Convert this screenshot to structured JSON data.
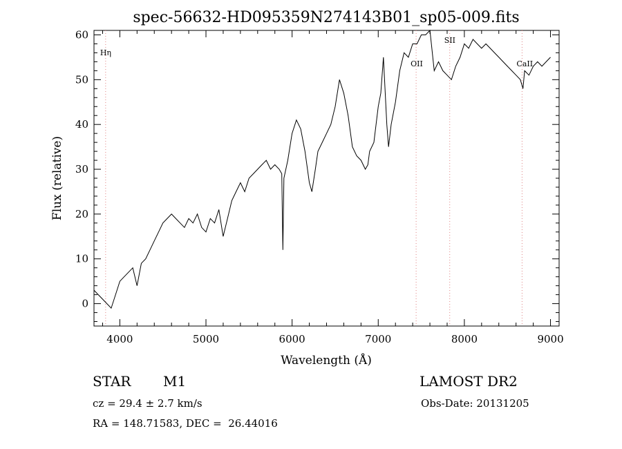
{
  "chart_data": {
    "type": "line",
    "title": "spec-56632-HD095359N274143B01_sp05-009.fits",
    "xlabel": "Wavelength (Å)",
    "ylabel": "Flux (relative)",
    "xlim": [
      3700,
      9100
    ],
    "ylim": [
      -5,
      61
    ],
    "xticks": [
      4000,
      5000,
      6000,
      7000,
      8000,
      9000
    ],
    "yticks": [
      0,
      10,
      20,
      30,
      40,
      50,
      60
    ],
    "grid": false,
    "line_color": "#000000",
    "marker_color": "#e08080",
    "series": [
      {
        "x": [
          3700,
          3750,
          3800,
          3850,
          3900,
          3950,
          4000,
          4050,
          4100,
          4150,
          4200,
          4250,
          4300,
          4350,
          4400,
          4450,
          4500,
          4550,
          4600,
          4650,
          4700,
          4750,
          4800,
          4850,
          4900,
          4950,
          5000,
          5050,
          5100,
          5150,
          5200,
          5250,
          5300,
          5350,
          5400,
          5450,
          5500,
          5550,
          5600,
          5650,
          5700,
          5750,
          5800,
          5850,
          5880,
          5893,
          5905,
          5950,
          6000,
          6050,
          6100,
          6150,
          6200,
          6230,
          6270,
          6300,
          6350,
          6400,
          6450,
          6500,
          6550,
          6600,
          6650,
          6700,
          6750,
          6800,
          6850,
          6880,
          6900,
          6950,
          7000,
          7030,
          7060,
          7100,
          7120,
          7150,
          7200,
          7250,
          7300,
          7350,
          7400,
          7450,
          7500,
          7550,
          7600,
          7650,
          7700,
          7750,
          7800,
          7850,
          7900,
          7950,
          8000,
          8050,
          8100,
          8150,
          8200,
          8250,
          8300,
          8350,
          8400,
          8450,
          8500,
          8550,
          8600,
          8650,
          8680,
          8700,
          8750,
          8800,
          8850,
          8900,
          8950,
          9000
        ],
        "y": [
          3,
          2,
          1,
          0,
          -1,
          2,
          5,
          6,
          7,
          8,
          4,
          9,
          10,
          12,
          14,
          16,
          18,
          19,
          20,
          19,
          18,
          17,
          19,
          18,
          20,
          17,
          16,
          19,
          18,
          21,
          15,
          19,
          23,
          25,
          27,
          25,
          28,
          29,
          30,
          31,
          32,
          30,
          31,
          30,
          29,
          12,
          28,
          32,
          38,
          41,
          39,
          34,
          27,
          25,
          30,
          34,
          36,
          38,
          40,
          44,
          50,
          47,
          42,
          35,
          33,
          32,
          30,
          31,
          34,
          36,
          44,
          47,
          55,
          40,
          35,
          40,
          45,
          52,
          56,
          55,
          58,
          58,
          60,
          60,
          61,
          52,
          54,
          52,
          51,
          50,
          53,
          55,
          58,
          57,
          59,
          58,
          57,
          58,
          57,
          56,
          55,
          54,
          53,
          52,
          51,
          50,
          48,
          52,
          51,
          53,
          54,
          53,
          54,
          55
        ]
      }
    ],
    "markers": [
      {
        "label": "Hη",
        "x": 3835
      },
      {
        "label": "OII",
        "x": 7440
      },
      {
        "label": "SII",
        "x": 7830
      },
      {
        "label": "CaII",
        "x": 8670
      }
    ]
  },
  "info": {
    "object_class": "STAR",
    "object_type": "M1",
    "cz": "cz = 29.4 ± 2.7 km/s",
    "coords": "RA = 148.71583, DEC =  26.44016",
    "survey": "LAMOST DR2",
    "obs_date": "Obs-Date: 20131205"
  }
}
